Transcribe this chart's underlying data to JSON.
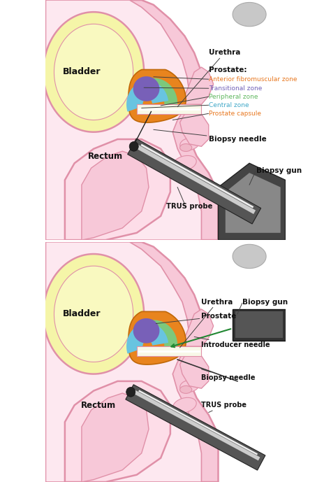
{
  "fig_width": 4.74,
  "fig_height": 6.89,
  "dpi": 100,
  "bg_color": "#ffffff",
  "skin_color": "#f7c8d8",
  "skin_outline": "#e090a8",
  "skin_lw": 1.8,
  "bladder_color": "#f5f5a8",
  "bladder_inner": "#f9f9c0",
  "prostate_orange": "#e8841e",
  "prostate_green": "#7cc87c",
  "prostate_blue": "#68c4e0",
  "prostate_purple": "#7860b8",
  "white_strip": "#f8f8e8",
  "probe_dark": "#444444",
  "probe_mid": "#888888",
  "probe_light": "#bbbbbb",
  "gun_dark": "#333333",
  "gun_mid": "#666666",
  "gun_light": "#999999",
  "gray_blob": "#c8c8c8",
  "pink_nodule": "#f0b8c8",
  "panel1_labels": {
    "urethra": "Urethra",
    "prostate_title": "Prostate:",
    "ant_fibro": "Anterior fibromuscular zone",
    "transitional": "Transitional zone",
    "peripheral": "Peripheral zone",
    "central": "Central zone",
    "capsule": "Prostate capsule",
    "biopsy_needle": "Biopsy needle",
    "rectum": "Rectum",
    "bladder": "Bladder",
    "biopsy_gun": "Biopsy gun",
    "trus_probe": "TRUS probe"
  },
  "panel1_label_colors": {
    "ant_fibro": "#e87820",
    "transitional": "#7060b8",
    "peripheral": "#60b860",
    "central": "#40a8c8",
    "capsule": "#e87820"
  },
  "panel2_labels": {
    "urethra": "Urethra",
    "prostate": "Prostate",
    "biopsy_gun": "Biopsy gun",
    "introducer": "Introducer needle",
    "biopsy_needle": "Biopsy needle",
    "trus_probe": "TRUS probe",
    "rectum": "Rectum",
    "bladder": "Bladder"
  }
}
